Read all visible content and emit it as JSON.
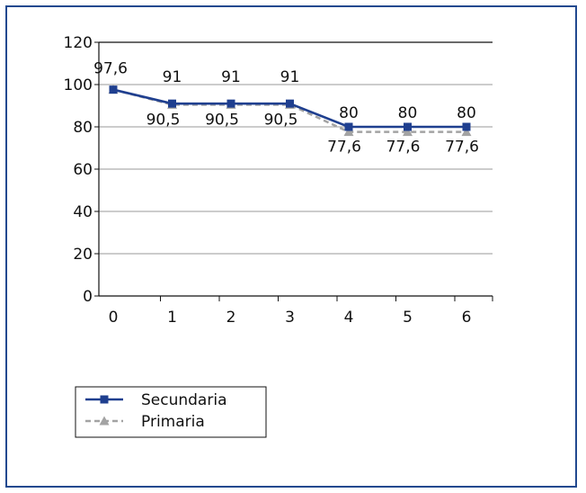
{
  "chart_data": {
    "type": "line",
    "title": "",
    "xlabel": "",
    "ylabel": "",
    "x": [
      "0",
      "1",
      "2",
      "3",
      "4",
      "5",
      "6"
    ],
    "ylim": [
      0,
      120
    ],
    "y_ticks": [
      "0",
      "20",
      "40",
      "60",
      "80",
      "100",
      "120"
    ],
    "grid": true,
    "legend_position": "bottom-left",
    "series": [
      {
        "name": "Secundaria",
        "values": [
          97.6,
          91,
          91,
          91,
          80,
          80,
          80
        ],
        "labels": [
          "97,6",
          "91",
          "91",
          "91",
          "80",
          "80",
          "80"
        ],
        "color": "#1f3f8f",
        "line_style": "solid",
        "marker": "square"
      },
      {
        "name": "Primaria",
        "values": [
          97.6,
          90.5,
          90.5,
          90.5,
          77.6,
          77.6,
          77.6
        ],
        "labels": [
          "",
          "90,5",
          "90,5",
          "90,5",
          "77,6",
          "77,6",
          "77,6"
        ],
        "color": "#a3a3a3",
        "line_style": "dashed",
        "marker": "triangle"
      }
    ]
  }
}
